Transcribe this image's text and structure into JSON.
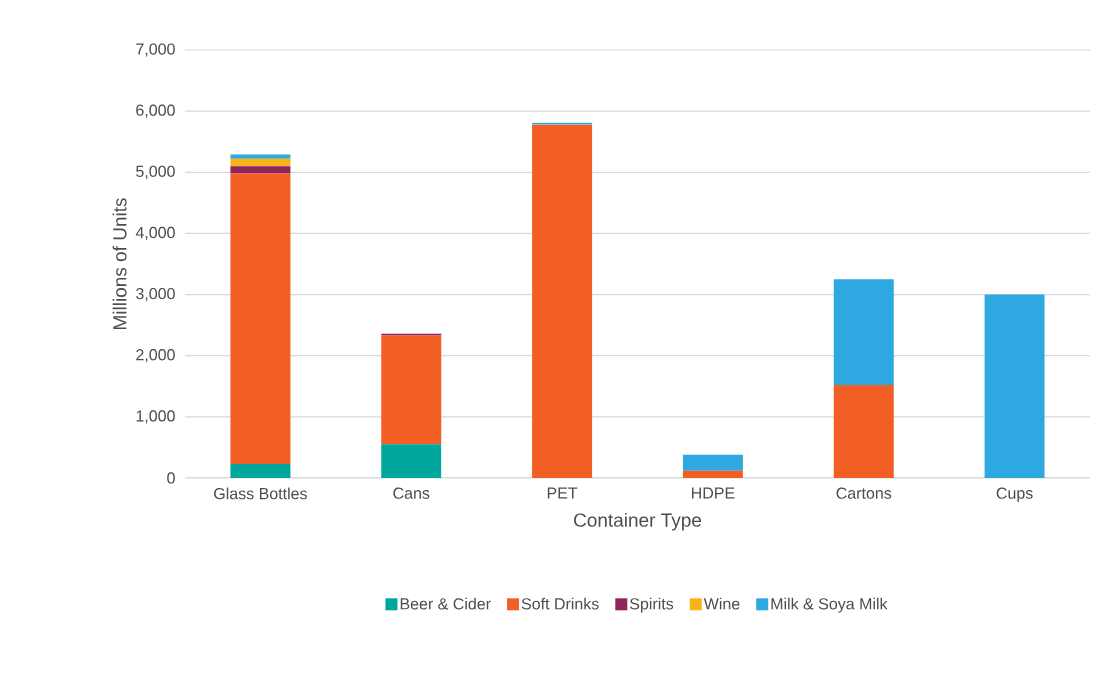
{
  "chart_data": {
    "type": "bar",
    "stacked": true,
    "xlabel": "Container Type",
    "ylabel": "Millions of Units",
    "categories": [
      "Glass Bottles",
      "Cans",
      "PET",
      "HDPE",
      "Cartons",
      "Cups"
    ],
    "series": [
      {
        "name": "Beer & Cider",
        "color": "#00a79d",
        "values": [
          230,
          550,
          null,
          null,
          null,
          null
        ]
      },
      {
        "name": "Soft Drinks",
        "color": "#f15f24",
        "values": [
          4750,
          1780,
          5780,
          120,
          1520,
          null
        ]
      },
      {
        "name": "Spirits",
        "color": "#8e2457",
        "values": [
          120,
          30,
          null,
          null,
          null,
          null
        ]
      },
      {
        "name": "Wine",
        "color": "#f8b316",
        "values": [
          120,
          null,
          null,
          null,
          null,
          null
        ]
      },
      {
        "name": "Milk & Soya Milk",
        "color": "#2ea8e0",
        "values": [
          70,
          null,
          30,
          260,
          1730,
          3000
        ]
      }
    ],
    "ylim": [
      0,
      7000
    ],
    "yticks": [
      {
        "value": 0,
        "label": "0"
      },
      {
        "value": 1000,
        "label": "1,000"
      },
      {
        "value": 2000,
        "label": "2,000"
      },
      {
        "value": 3000,
        "label": "3,000"
      },
      {
        "value": 4000,
        "label": "4,000"
      },
      {
        "value": 5000,
        "label": "5,000"
      },
      {
        "value": 6000,
        "label": "6,000"
      },
      {
        "value": 7000,
        "label": "7,000"
      }
    ],
    "grid": "y",
    "legend": "bottom"
  }
}
